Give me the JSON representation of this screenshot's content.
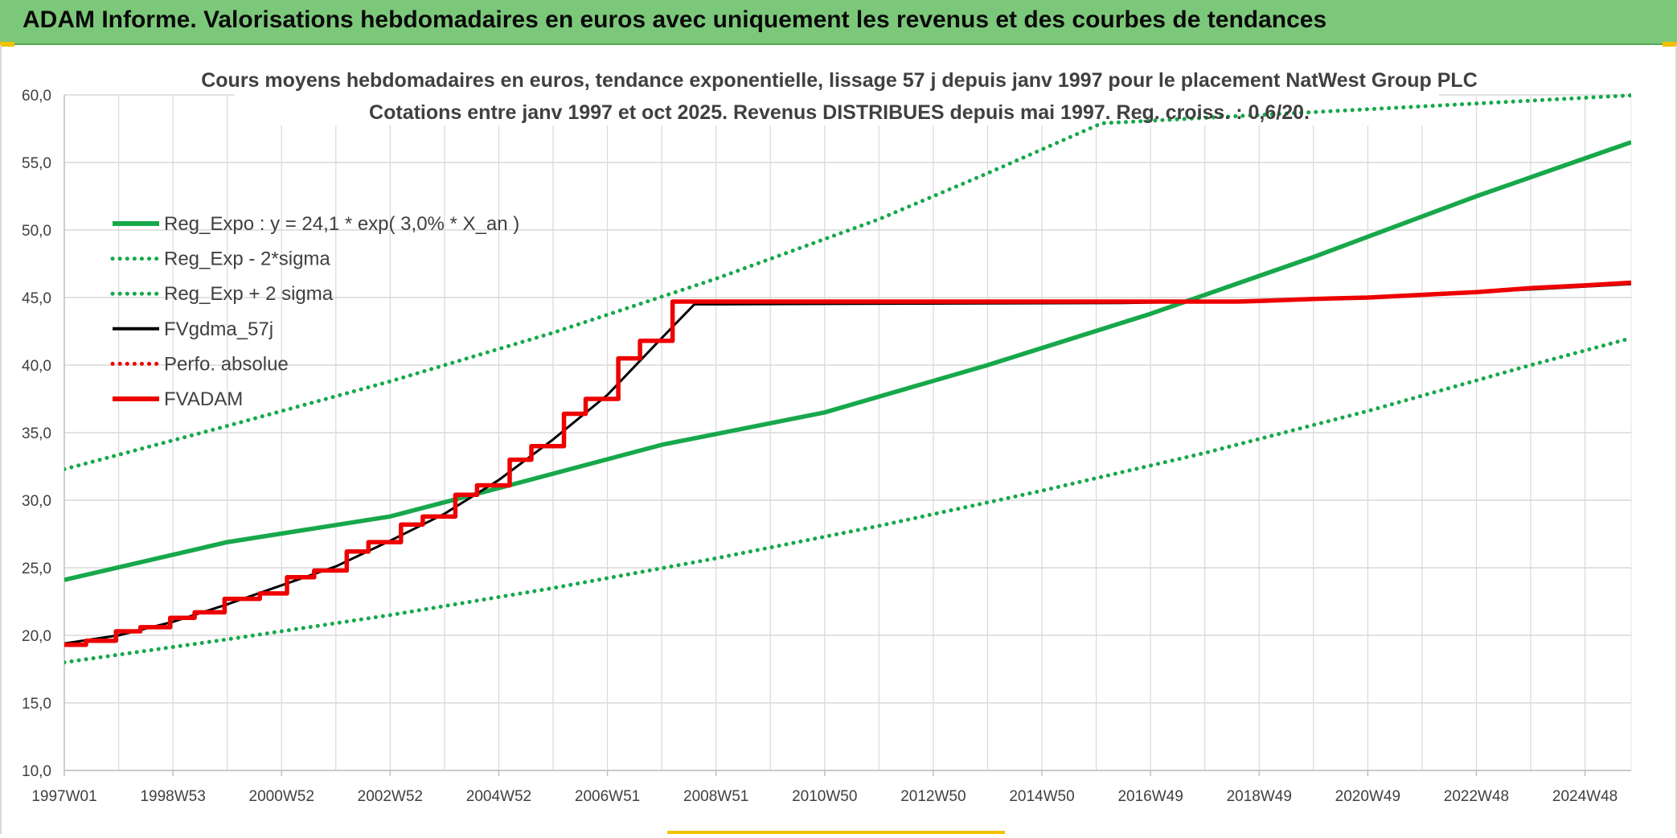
{
  "banner": {
    "title": "ADAM Informe. Valorisations hebdomadaires en euros avec uniquement les revenus et des courbes de tendances"
  },
  "colors": {
    "banner": "#7cc87a",
    "green": "#17a84b",
    "red": "#ee0000",
    "black": "#000000",
    "grid": "#d9d9d9"
  },
  "chart_data": {
    "type": "line",
    "title": "Cours moyens hebdomadaires en euros, tendance exponentielle, lissage 57 j depuis janv 1997 pour le placement NatWest Group PLC",
    "subtitle": "Cotations entre janv 1997 et oct 2025. Revenus DISTRIBUES depuis mai 1997. Reg. croiss. : 0,6/20.",
    "xlabel": "",
    "ylabel": "",
    "ylim": [
      10,
      60
    ],
    "xlim": [
      1997.0,
      2025.85
    ],
    "grid": true,
    "legend_position": "top-left",
    "y_ticks": [
      "10,0",
      "15,0",
      "20,0",
      "25,0",
      "30,0",
      "35,0",
      "40,0",
      "45,0",
      "50,0",
      "55,0",
      "60,0"
    ],
    "x_tick_labels": [
      {
        "label": "1997W01",
        "x": 1997.0
      },
      {
        "label": "1998W53",
        "x": 1999.0
      },
      {
        "label": "2000W52",
        "x": 2001.0
      },
      {
        "label": "2002W52",
        "x": 2003.0
      },
      {
        "label": "2004W52",
        "x": 2005.0
      },
      {
        "label": "2006W51",
        "x": 2007.0
      },
      {
        "label": "2008W51",
        "x": 2009.0
      },
      {
        "label": "2010W50",
        "x": 2011.0
      },
      {
        "label": "2012W50",
        "x": 2013.0
      },
      {
        "label": "2014W50",
        "x": 2015.0
      },
      {
        "label": "2016W49",
        "x": 2017.0
      },
      {
        "label": "2018W49",
        "x": 2019.0
      },
      {
        "label": "2020W49",
        "x": 2021.0
      },
      {
        "label": "2022W48",
        "x": 2023.0
      },
      {
        "label": "2024W48",
        "x": 2025.0
      }
    ],
    "series": [
      {
        "name": "Reg_Expo : y = 24,1 * exp( 3,0% *  X_an )",
        "style": "solid",
        "color": "#17a84b",
        "points": [
          [
            1997.0,
            24.1
          ],
          [
            2000.0,
            26.9
          ],
          [
            2003.0,
            28.8
          ],
          [
            2005.0,
            30.9
          ],
          [
            2008.0,
            34.1
          ],
          [
            2011.0,
            36.5
          ],
          [
            2014.0,
            40.0
          ],
          [
            2017.0,
            43.8
          ],
          [
            2020.0,
            48.0
          ],
          [
            2023.0,
            52.5
          ],
          [
            2025.85,
            56.5
          ]
        ]
      },
      {
        "name": "Reg_Exp - 2*sigma",
        "style": "dotted",
        "color": "#17a84b",
        "points": [
          [
            1997.0,
            18.0
          ],
          [
            2000.0,
            19.7
          ],
          [
            2003.0,
            21.5
          ],
          [
            2006.0,
            23.5
          ],
          [
            2009.0,
            25.7
          ],
          [
            2012.0,
            28.1
          ],
          [
            2015.0,
            30.7
          ],
          [
            2018.0,
            33.5
          ],
          [
            2021.0,
            36.6
          ],
          [
            2024.0,
            40.0
          ],
          [
            2025.85,
            42.0
          ]
        ]
      },
      {
        "name": "Reg_Exp + 2 sigma",
        "style": "dotted",
        "color": "#17a84b",
        "points": [
          [
            1997.0,
            32.3
          ],
          [
            2000.0,
            35.5
          ],
          [
            2003.0,
            38.8
          ],
          [
            2006.0,
            42.4
          ],
          [
            2009.0,
            46.4
          ],
          [
            2012.0,
            50.8
          ],
          [
            2014.0,
            54.2
          ],
          [
            2016.1,
            57.9
          ],
          [
            2026.0,
            60.0
          ]
        ]
      },
      {
        "name": "FVgdma_57j",
        "style": "solid",
        "color": "#000000",
        "points": [
          [
            1997.0,
            19.4
          ],
          [
            1998.0,
            20.0
          ],
          [
            1999.0,
            21.0
          ],
          [
            2000.0,
            22.3
          ],
          [
            2001.0,
            23.7
          ],
          [
            2002.0,
            25.1
          ],
          [
            2003.0,
            27.0
          ],
          [
            2004.0,
            29.0
          ],
          [
            2005.0,
            31.5
          ],
          [
            2006.0,
            34.5
          ],
          [
            2007.0,
            37.8
          ],
          [
            2008.0,
            42.0
          ],
          [
            2008.6,
            44.5
          ],
          [
            2016.5,
            44.6
          ],
          [
            2018.0,
            44.7
          ],
          [
            2020.0,
            44.9
          ],
          [
            2022.0,
            45.2
          ],
          [
            2024.0,
            45.6
          ],
          [
            2025.85,
            46.0
          ]
        ]
      },
      {
        "name": "Perfo. absolue",
        "style": "dotted",
        "color": "#ee0000",
        "points": []
      },
      {
        "name": "FVADAM",
        "style": "solid",
        "color": "#ee0000",
        "points": [
          [
            1997.0,
            19.3
          ],
          [
            1997.4,
            19.3
          ],
          [
            1997.4,
            19.6
          ],
          [
            1997.95,
            19.6
          ],
          [
            1997.95,
            20.3
          ],
          [
            1998.4,
            20.3
          ],
          [
            1998.4,
            20.6
          ],
          [
            1998.95,
            20.6
          ],
          [
            1998.95,
            21.3
          ],
          [
            1999.4,
            21.3
          ],
          [
            1999.4,
            21.7
          ],
          [
            1999.95,
            21.7
          ],
          [
            1999.95,
            22.7
          ],
          [
            2000.6,
            22.7
          ],
          [
            2000.6,
            23.1
          ],
          [
            2001.1,
            23.1
          ],
          [
            2001.1,
            24.3
          ],
          [
            2001.6,
            24.3
          ],
          [
            2001.6,
            24.8
          ],
          [
            2002.2,
            24.8
          ],
          [
            2002.2,
            26.2
          ],
          [
            2002.6,
            26.2
          ],
          [
            2002.6,
            26.9
          ],
          [
            2003.2,
            26.9
          ],
          [
            2003.2,
            28.2
          ],
          [
            2003.6,
            28.2
          ],
          [
            2003.6,
            28.8
          ],
          [
            2004.2,
            28.8
          ],
          [
            2004.2,
            30.4
          ],
          [
            2004.6,
            30.4
          ],
          [
            2004.6,
            31.1
          ],
          [
            2005.2,
            31.1
          ],
          [
            2005.2,
            33.0
          ],
          [
            2005.6,
            33.0
          ],
          [
            2005.6,
            34.0
          ],
          [
            2006.2,
            34.0
          ],
          [
            2006.2,
            36.4
          ],
          [
            2006.6,
            36.4
          ],
          [
            2006.6,
            37.5
          ],
          [
            2007.2,
            37.5
          ],
          [
            2007.2,
            40.5
          ],
          [
            2007.6,
            40.5
          ],
          [
            2007.6,
            41.8
          ],
          [
            2008.2,
            41.8
          ],
          [
            2008.2,
            44.7
          ],
          [
            2018.6,
            44.7
          ],
          [
            2019.0,
            44.75
          ],
          [
            2020.0,
            44.9
          ],
          [
            2021.0,
            45.0
          ],
          [
            2022.0,
            45.2
          ],
          [
            2023.0,
            45.4
          ],
          [
            2024.0,
            45.7
          ],
          [
            2025.0,
            45.9
          ],
          [
            2025.85,
            46.1
          ]
        ]
      }
    ]
  }
}
